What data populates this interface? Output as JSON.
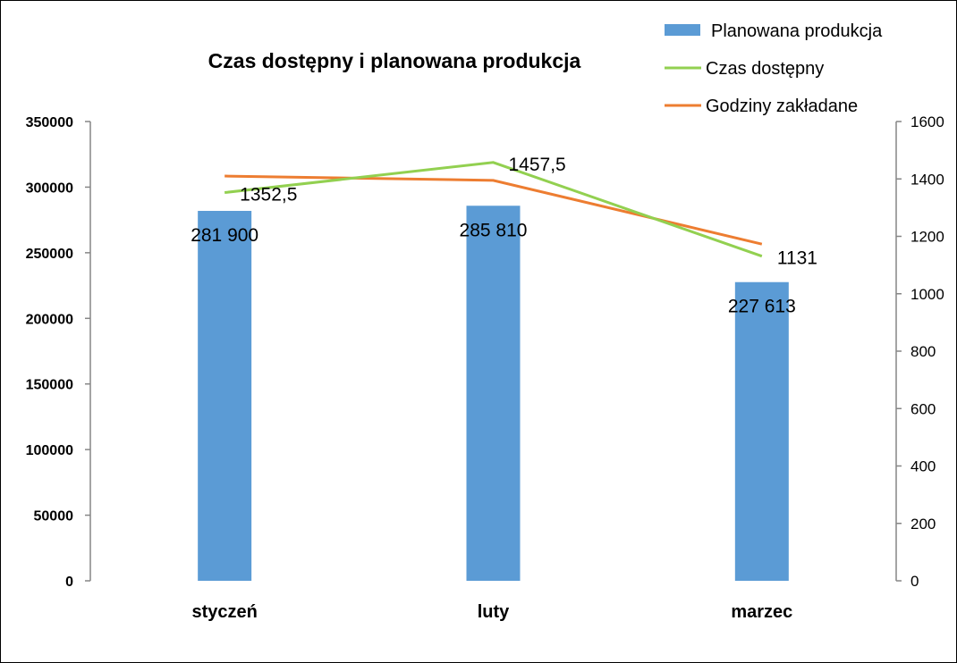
{
  "chart_data": {
    "type": "bar+line",
    "title": "Czas dostępny i planowana produkcja",
    "categories": [
      "styczeń",
      "luty",
      "marzec"
    ],
    "bars": {
      "name": "Planowana produkcja",
      "values": [
        281900,
        285810,
        227613
      ],
      "labels": [
        "281 900",
        "285 810",
        "227 613"
      ],
      "color": "#5b9bd5",
      "axis": "left"
    },
    "lines": [
      {
        "name": "Czas dostępny",
        "values": [
          1352.5,
          1457.5,
          1131
        ],
        "labels": [
          "1352,5",
          "1457,5",
          "1131"
        ],
        "color": "#92d050",
        "axis": "right"
      },
      {
        "name": "Godziny zakładane",
        "values": [
          1410,
          1395,
          1173
        ],
        "color": "#ed7d31",
        "axis": "right"
      }
    ],
    "left_axis": {
      "min": 0,
      "max": 350000,
      "step": 50000,
      "ticks": [
        "0",
        "50000",
        "100000",
        "150000",
        "200000",
        "250000",
        "300000",
        "350000"
      ]
    },
    "right_axis": {
      "min": 0,
      "max": 1600,
      "step": 200,
      "ticks": [
        "0",
        "200",
        "400",
        "600",
        "800",
        "1000",
        "1200",
        "1400",
        "1600"
      ]
    },
    "legend": "top-right",
    "grid": false
  }
}
